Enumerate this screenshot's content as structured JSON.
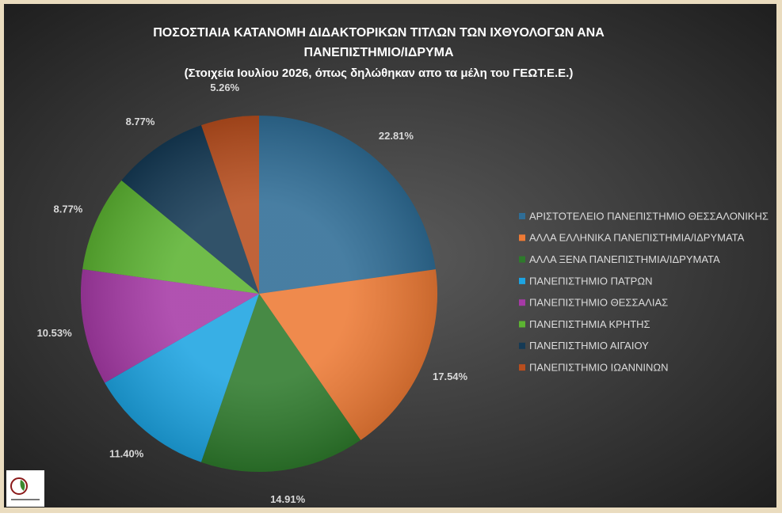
{
  "chart_data": {
    "type": "pie",
    "title": [
      "ΠΟΣΟΣΤΙΑΙΑ ΚΑΤΑΝΟΜΗ ΔΙΔΑΚΤΟΡΙΚΩΝ ΤΙΤΛΩΝ ΤΩΝ ΙΧΘΥΟΛΟΓΩΝ ΑΝΑ",
      "ΠΑΝΕΠΙΣΤΗΜΙΟ/ΙΔΡΥΜΑ"
    ],
    "subtitle": "(Στοιχεία Ιουλίου 2026, όπως δηλώθηκαν απο τα μέλη του ΓΕΩΤ.Ε.Ε.)",
    "categories": [
      "ΑΡΙΣΤΟΤΕΛΕΙΟ ΠΑΝΕΠΙΣΤΗΜΙΟ ΘΕΣΣΑΛΟΝΙΚΗΣ",
      "ΑΛΛΑ ΕΛΛΗΝΙΚΑ ΠΑΝΕΠΙΣΤΗΜΙΑ/ΙΔΡΥΜΑΤΑ",
      "ΑΛΛΑ ΞΕΝΑ ΠΑΝΕΠΙΣΤΗΜΙΑ/ΙΔΡΥΜΑΤΑ",
      "ΠΑΝΕΠΙΣΤΗΜΙΟ ΠΑΤΡΩΝ",
      "ΠΑΝΕΠΙΣΤΗΜΙΟ ΘΕΣΣΑΛΙΑΣ",
      "ΠΑΝΕΠΙΣΤΗΜΙΑ ΚΡΗΤΗΣ",
      "ΠΑΝΕΠΙΣΤΗΜΙΟ ΑΙΓΑΙΟΥ",
      "ΠΑΝΕΠΙΣΤΗΜΙΟ ΙΩΑΝΝΙΝΩΝ"
    ],
    "values": [
      22.81,
      17.54,
      14.91,
      11.4,
      10.53,
      8.77,
      8.77,
      5.26
    ],
    "value_labels": [
      "22.81%",
      "17.54%",
      "14.91%",
      "11.40%",
      "10.53%",
      "8.77%",
      "8.77%",
      "5.26%"
    ],
    "colors": [
      "#2f6d96",
      "#ed7a35",
      "#2e7a2c",
      "#1da4e2",
      "#a63aa6",
      "#5cb332",
      "#153a55",
      "#b84e1e"
    ],
    "legend": "right"
  }
}
